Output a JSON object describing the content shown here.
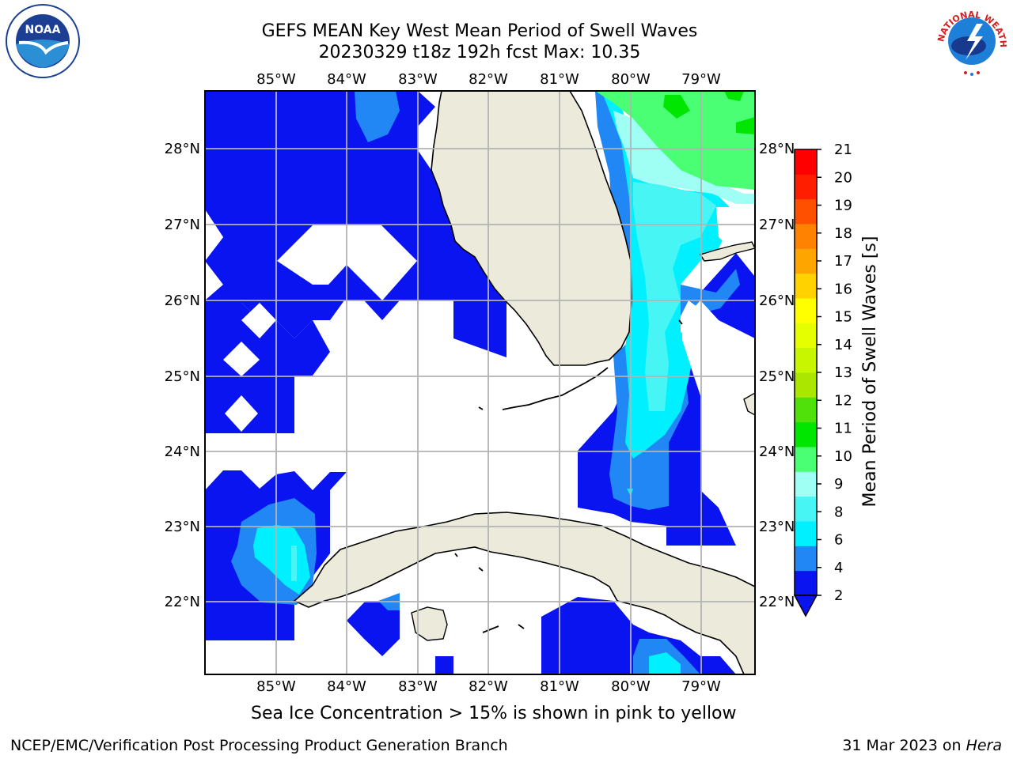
{
  "header": {
    "title_line1": "GEFS MEAN Key West Mean Period of Swell Waves",
    "title_line2": "20230329 t18z 192h fcst   Max: 10.35"
  },
  "logos": {
    "noaa_text": "NOAA",
    "nws_text": "NATIONAL WEATHER SERVICE"
  },
  "map": {
    "longitude_labels": [
      "85°W",
      "84°W",
      "83°W",
      "82°W",
      "81°W",
      "80°W",
      "79°W"
    ],
    "latitude_labels": [
      "28°N",
      "27°N",
      "26°N",
      "25°N",
      "24°N",
      "23°N",
      "22°N"
    ],
    "extent": {
      "lon_min": -86,
      "lon_max": -78.25,
      "lat_min": 21,
      "lat_max": 28.75
    },
    "colors": {
      "land": "#ecebdb",
      "ocean_no_data": "#ffffff",
      "coastline": "#000000",
      "gridline": "#b3b3b3"
    }
  },
  "colorbar": {
    "label": "Mean Period of Swell Waves [s]",
    "tick_labels": [
      "2",
      "4",
      "6",
      "8",
      "9",
      "10",
      "11",
      "12",
      "13",
      "14",
      "15",
      "16",
      "17",
      "18",
      "19",
      "20",
      "21"
    ],
    "levels": [
      2,
      4,
      6,
      8,
      9,
      10,
      11,
      12,
      13,
      14,
      15,
      16,
      17,
      18,
      19,
      20,
      21
    ],
    "colors": [
      "#0a14f0",
      "#2087f5",
      "#00f0ff",
      "#47f5f5",
      "#a0fff5",
      "#4bff75",
      "#00e600",
      "#50e10a",
      "#aae600",
      "#c8f500",
      "#e6ff00",
      "#ffff00",
      "#ffd200",
      "#ffa500",
      "#ff8200",
      "#ff5000",
      "#ff1e00",
      "#ff0000"
    ],
    "under_color": "#0a14f0"
  },
  "footer": {
    "ice_note": "Sea Ice Concentration > 15% is shown in pink to yellow",
    "credit_left": "NCEP/EMC/Verification Post Processing Product Generation Branch",
    "credit_date": "31 Mar 2023 on",
    "credit_host": "Hera"
  }
}
